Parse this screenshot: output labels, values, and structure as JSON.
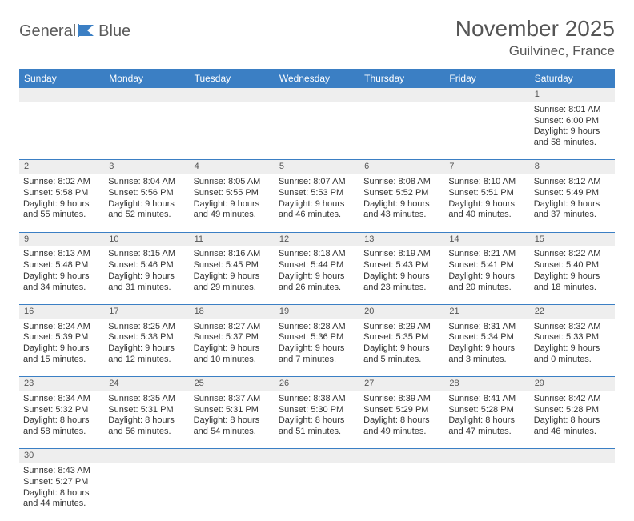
{
  "brand": {
    "textGray": "General",
    "textBlue": "Blue"
  },
  "title": {
    "month": "November 2025",
    "location": "Guilvinec, France"
  },
  "colors": {
    "headerBg": "#3b7fc4",
    "numRowBg": "#eeeeee",
    "text": "#333333",
    "rule": "#3b7fc4"
  },
  "dayHeaders": [
    "Sunday",
    "Monday",
    "Tuesday",
    "Wednesday",
    "Thursday",
    "Friday",
    "Saturday"
  ],
  "weeks": [
    {
      "nums": [
        "",
        "",
        "",
        "",
        "",
        "",
        "1"
      ],
      "cells": [
        null,
        null,
        null,
        null,
        null,
        null,
        {
          "sunrise": "Sunrise: 8:01 AM",
          "sunset": "Sunset: 6:00 PM",
          "day1": "Daylight: 9 hours",
          "day2": "and 58 minutes."
        }
      ]
    },
    {
      "nums": [
        "2",
        "3",
        "4",
        "5",
        "6",
        "7",
        "8"
      ],
      "cells": [
        {
          "sunrise": "Sunrise: 8:02 AM",
          "sunset": "Sunset: 5:58 PM",
          "day1": "Daylight: 9 hours",
          "day2": "and 55 minutes."
        },
        {
          "sunrise": "Sunrise: 8:04 AM",
          "sunset": "Sunset: 5:56 PM",
          "day1": "Daylight: 9 hours",
          "day2": "and 52 minutes."
        },
        {
          "sunrise": "Sunrise: 8:05 AM",
          "sunset": "Sunset: 5:55 PM",
          "day1": "Daylight: 9 hours",
          "day2": "and 49 minutes."
        },
        {
          "sunrise": "Sunrise: 8:07 AM",
          "sunset": "Sunset: 5:53 PM",
          "day1": "Daylight: 9 hours",
          "day2": "and 46 minutes."
        },
        {
          "sunrise": "Sunrise: 8:08 AM",
          "sunset": "Sunset: 5:52 PM",
          "day1": "Daylight: 9 hours",
          "day2": "and 43 minutes."
        },
        {
          "sunrise": "Sunrise: 8:10 AM",
          "sunset": "Sunset: 5:51 PM",
          "day1": "Daylight: 9 hours",
          "day2": "and 40 minutes."
        },
        {
          "sunrise": "Sunrise: 8:12 AM",
          "sunset": "Sunset: 5:49 PM",
          "day1": "Daylight: 9 hours",
          "day2": "and 37 minutes."
        }
      ]
    },
    {
      "nums": [
        "9",
        "10",
        "11",
        "12",
        "13",
        "14",
        "15"
      ],
      "cells": [
        {
          "sunrise": "Sunrise: 8:13 AM",
          "sunset": "Sunset: 5:48 PM",
          "day1": "Daylight: 9 hours",
          "day2": "and 34 minutes."
        },
        {
          "sunrise": "Sunrise: 8:15 AM",
          "sunset": "Sunset: 5:46 PM",
          "day1": "Daylight: 9 hours",
          "day2": "and 31 minutes."
        },
        {
          "sunrise": "Sunrise: 8:16 AM",
          "sunset": "Sunset: 5:45 PM",
          "day1": "Daylight: 9 hours",
          "day2": "and 29 minutes."
        },
        {
          "sunrise": "Sunrise: 8:18 AM",
          "sunset": "Sunset: 5:44 PM",
          "day1": "Daylight: 9 hours",
          "day2": "and 26 minutes."
        },
        {
          "sunrise": "Sunrise: 8:19 AM",
          "sunset": "Sunset: 5:43 PM",
          "day1": "Daylight: 9 hours",
          "day2": "and 23 minutes."
        },
        {
          "sunrise": "Sunrise: 8:21 AM",
          "sunset": "Sunset: 5:41 PM",
          "day1": "Daylight: 9 hours",
          "day2": "and 20 minutes."
        },
        {
          "sunrise": "Sunrise: 8:22 AM",
          "sunset": "Sunset: 5:40 PM",
          "day1": "Daylight: 9 hours",
          "day2": "and 18 minutes."
        }
      ]
    },
    {
      "nums": [
        "16",
        "17",
        "18",
        "19",
        "20",
        "21",
        "22"
      ],
      "cells": [
        {
          "sunrise": "Sunrise: 8:24 AM",
          "sunset": "Sunset: 5:39 PM",
          "day1": "Daylight: 9 hours",
          "day2": "and 15 minutes."
        },
        {
          "sunrise": "Sunrise: 8:25 AM",
          "sunset": "Sunset: 5:38 PM",
          "day1": "Daylight: 9 hours",
          "day2": "and 12 minutes."
        },
        {
          "sunrise": "Sunrise: 8:27 AM",
          "sunset": "Sunset: 5:37 PM",
          "day1": "Daylight: 9 hours",
          "day2": "and 10 minutes."
        },
        {
          "sunrise": "Sunrise: 8:28 AM",
          "sunset": "Sunset: 5:36 PM",
          "day1": "Daylight: 9 hours",
          "day2": "and 7 minutes."
        },
        {
          "sunrise": "Sunrise: 8:29 AM",
          "sunset": "Sunset: 5:35 PM",
          "day1": "Daylight: 9 hours",
          "day2": "and 5 minutes."
        },
        {
          "sunrise": "Sunrise: 8:31 AM",
          "sunset": "Sunset: 5:34 PM",
          "day1": "Daylight: 9 hours",
          "day2": "and 3 minutes."
        },
        {
          "sunrise": "Sunrise: 8:32 AM",
          "sunset": "Sunset: 5:33 PM",
          "day1": "Daylight: 9 hours",
          "day2": "and 0 minutes."
        }
      ]
    },
    {
      "nums": [
        "23",
        "24",
        "25",
        "26",
        "27",
        "28",
        "29"
      ],
      "cells": [
        {
          "sunrise": "Sunrise: 8:34 AM",
          "sunset": "Sunset: 5:32 PM",
          "day1": "Daylight: 8 hours",
          "day2": "and 58 minutes."
        },
        {
          "sunrise": "Sunrise: 8:35 AM",
          "sunset": "Sunset: 5:31 PM",
          "day1": "Daylight: 8 hours",
          "day2": "and 56 minutes."
        },
        {
          "sunrise": "Sunrise: 8:37 AM",
          "sunset": "Sunset: 5:31 PM",
          "day1": "Daylight: 8 hours",
          "day2": "and 54 minutes."
        },
        {
          "sunrise": "Sunrise: 8:38 AM",
          "sunset": "Sunset: 5:30 PM",
          "day1": "Daylight: 8 hours",
          "day2": "and 51 minutes."
        },
        {
          "sunrise": "Sunrise: 8:39 AM",
          "sunset": "Sunset: 5:29 PM",
          "day1": "Daylight: 8 hours",
          "day2": "and 49 minutes."
        },
        {
          "sunrise": "Sunrise: 8:41 AM",
          "sunset": "Sunset: 5:28 PM",
          "day1": "Daylight: 8 hours",
          "day2": "and 47 minutes."
        },
        {
          "sunrise": "Sunrise: 8:42 AM",
          "sunset": "Sunset: 5:28 PM",
          "day1": "Daylight: 8 hours",
          "day2": "and 46 minutes."
        }
      ]
    },
    {
      "nums": [
        "30",
        "",
        "",
        "",
        "",
        "",
        ""
      ],
      "cells": [
        {
          "sunrise": "Sunrise: 8:43 AM",
          "sunset": "Sunset: 5:27 PM",
          "day1": "Daylight: 8 hours",
          "day2": "and 44 minutes."
        },
        null,
        null,
        null,
        null,
        null,
        null
      ],
      "last": true
    }
  ]
}
